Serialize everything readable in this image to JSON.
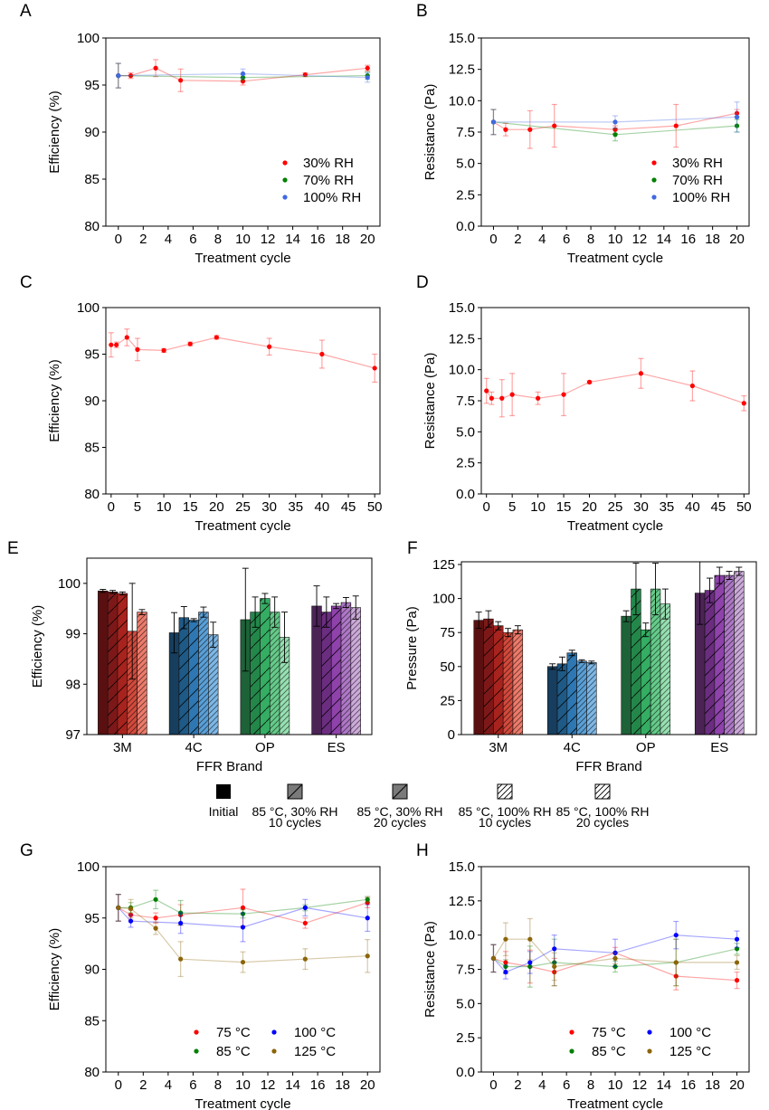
{
  "chart_data": [
    {
      "panel": "A",
      "type": "scatter",
      "xlabel": "Treatment cycle",
      "ylabel": "Efficiency (%)",
      "xlim": [
        -1,
        21
      ],
      "ylim": [
        80,
        100
      ],
      "xticks": [
        0,
        2,
        4,
        6,
        8,
        10,
        12,
        14,
        16,
        18,
        20
      ],
      "yticks": [
        80,
        85,
        90,
        95,
        100
      ],
      "legend": "lower-right",
      "legend_cols": 1,
      "series": [
        {
          "name": "30% RH",
          "color": "#ff0000",
          "x": [
            0,
            1,
            3,
            5,
            10,
            15,
            20
          ],
          "y": [
            96.0,
            96.0,
            96.8,
            95.5,
            95.4,
            96.1,
            96.8
          ],
          "err": [
            1.3,
            0.3,
            0.9,
            1.2,
            0.4,
            0.2,
            0.3
          ]
        },
        {
          "name": "70% RH",
          "color": "#008000",
          "x": [
            0,
            10,
            20
          ],
          "y": [
            96.0,
            95.8,
            96.0
          ],
          "err": [
            1.3,
            0.3,
            0.4
          ]
        },
        {
          "name": "100% RH",
          "color": "#4169e1",
          "x": [
            0,
            10,
            20
          ],
          "y": [
            96.0,
            96.2,
            95.8
          ],
          "err": [
            1.3,
            0.5,
            0.5
          ]
        }
      ]
    },
    {
      "panel": "B",
      "type": "scatter",
      "xlabel": "Treatment cycle",
      "ylabel": "Resistance (Pa)",
      "xlim": [
        -1,
        21
      ],
      "ylim": [
        0,
        15
      ],
      "xticks": [
        0,
        2,
        4,
        6,
        8,
        10,
        12,
        14,
        16,
        18,
        20
      ],
      "yticks": [
        0.0,
        2.5,
        5.0,
        7.5,
        10.0,
        12.5,
        15.0
      ],
      "ytick_decimals": 1,
      "legend": "lower-right",
      "legend_cols": 1,
      "series": [
        {
          "name": "30% RH",
          "color": "#ff0000",
          "x": [
            0,
            1,
            3,
            5,
            10,
            15,
            20
          ],
          "y": [
            8.3,
            7.7,
            7.7,
            8.0,
            7.7,
            8.0,
            9.0
          ],
          "err": [
            1.0,
            0.5,
            1.5,
            1.7,
            0.3,
            1.7,
            0.3
          ]
        },
        {
          "name": "70% RH",
          "color": "#008000",
          "x": [
            0,
            10,
            20
          ],
          "y": [
            8.3,
            7.3,
            8.0
          ],
          "err": [
            1.0,
            0.5,
            0.5
          ]
        },
        {
          "name": "100% RH",
          "color": "#4169e1",
          "x": [
            0,
            10,
            20
          ],
          "y": [
            8.3,
            8.3,
            8.7
          ],
          "err": [
            1.0,
            0.5,
            1.2
          ]
        }
      ]
    },
    {
      "panel": "C",
      "type": "scatter",
      "xlabel": "Treatment cycle",
      "ylabel": "Efficiency (%)",
      "xlim": [
        -1,
        51
      ],
      "ylim": [
        80,
        100
      ],
      "xticks": [
        0,
        5,
        10,
        15,
        20,
        25,
        30,
        35,
        40,
        45,
        50
      ],
      "yticks": [
        80,
        85,
        90,
        95,
        100
      ],
      "series": [
        {
          "name": "",
          "color": "#ff0000",
          "x": [
            0,
            1,
            3,
            5,
            10,
            15,
            20,
            30,
            40,
            50
          ],
          "y": [
            96.0,
            96.0,
            96.8,
            95.5,
            95.4,
            96.1,
            96.8,
            95.8,
            95.0,
            93.5
          ],
          "err": [
            1.3,
            0.3,
            0.9,
            1.2,
            0.2,
            0.2,
            0.2,
            0.9,
            1.5,
            1.5
          ]
        }
      ]
    },
    {
      "panel": "D",
      "type": "scatter",
      "xlabel": "Treatment cycle",
      "ylabel": "Resistance (Pa)",
      "xlim": [
        -1,
        51
      ],
      "ylim": [
        0,
        15
      ],
      "xticks": [
        0,
        5,
        10,
        15,
        20,
        25,
        30,
        35,
        40,
        45,
        50
      ],
      "yticks": [
        0.0,
        2.5,
        5.0,
        7.5,
        10.0,
        12.5,
        15.0
      ],
      "ytick_decimals": 1,
      "series": [
        {
          "name": "",
          "color": "#ff0000",
          "x": [
            0,
            1,
            3,
            5,
            10,
            15,
            20,
            30,
            40,
            50
          ],
          "y": [
            8.3,
            7.7,
            7.7,
            8.0,
            7.7,
            8.0,
            9.0,
            9.7,
            8.7,
            7.3
          ],
          "err": [
            1.0,
            0.5,
            1.5,
            1.7,
            0.5,
            1.7,
            0.1,
            1.2,
            1.2,
            0.6
          ]
        }
      ]
    },
    {
      "panel": "E",
      "type": "bar",
      "xlabel": "FFR Brand",
      "ylabel": "Efficiency (%)",
      "ylim": [
        97,
        100.5
      ],
      "yticks": [
        97,
        98,
        99,
        100
      ],
      "categories": [
        "3M",
        "4C",
        "OP",
        "ES"
      ],
      "colors": [
        [
          "#5a1010",
          "#7e1818",
          "#a8231d",
          "#d24a3c",
          "#ec7b6b"
        ],
        [
          "#173e5e",
          "#1f5a86",
          "#2e77b2",
          "#5a9fd6",
          "#7db7e6"
        ],
        [
          "#1e6238",
          "#24874a",
          "#35ad63",
          "#66cb8a",
          "#97e0b1"
        ],
        [
          "#4b2455",
          "#6b2d80",
          "#8e42aa",
          "#ae78c6",
          "#ccaad9"
        ]
      ],
      "values": [
        [
          99.85,
          99.83,
          99.8,
          99.05,
          99.43
        ],
        [
          99.02,
          99.32,
          99.27,
          99.43,
          98.98
        ],
        [
          99.28,
          99.43,
          99.7,
          99.43,
          98.93
        ],
        [
          99.55,
          99.43,
          99.55,
          99.62,
          99.52
        ]
      ],
      "err": [
        [
          0.03,
          0.03,
          0.03,
          0.95,
          0.05
        ],
        [
          0.4,
          0.22,
          0.03,
          0.1,
          0.25
        ],
        [
          1.02,
          0.3,
          0.1,
          0.3,
          0.5
        ],
        [
          0.4,
          0.3,
          0.05,
          0.1,
          0.23
        ]
      ]
    },
    {
      "panel": "F",
      "type": "bar",
      "xlabel": "FFR Brand",
      "ylabel": "Pressure (Pa)",
      "ylim": [
        0,
        127
      ],
      "yticks": [
        0,
        25,
        50,
        75,
        100,
        125
      ],
      "categories": [
        "3M",
        "4C",
        "OP",
        "ES"
      ],
      "colors": [
        [
          "#5a1010",
          "#7e1818",
          "#a8231d",
          "#d24a3c",
          "#ec7b6b"
        ],
        [
          "#173e5e",
          "#1f5a86",
          "#2e77b2",
          "#5a9fd6",
          "#7db7e6"
        ],
        [
          "#1e6238",
          "#24874a",
          "#35ad63",
          "#66cb8a",
          "#97e0b1"
        ],
        [
          "#4b2455",
          "#6b2d80",
          "#8e42aa",
          "#ae78c6",
          "#ccaad9"
        ]
      ],
      "values": [
        [
          84,
          85,
          80,
          75,
          77
        ],
        [
          50,
          52,
          60,
          54,
          53
        ],
        [
          87,
          107,
          77,
          107,
          96
        ],
        [
          104,
          106,
          117,
          117,
          120
        ]
      ],
      "err": [
        [
          6,
          6,
          3,
          3,
          3
        ],
        [
          2,
          5,
          2,
          1,
          1
        ],
        [
          4,
          19,
          5,
          19,
          11
        ],
        [
          23,
          9,
          6,
          3,
          3
        ]
      ]
    },
    {
      "panel": "G",
      "type": "scatter",
      "xlabel": "Treatment cycle",
      "ylabel": "Efficiency (%)",
      "xlim": [
        -1,
        21
      ],
      "ylim": [
        80,
        100
      ],
      "xticks": [
        0,
        2,
        4,
        6,
        8,
        10,
        12,
        14,
        16,
        18,
        20
      ],
      "yticks": [
        80,
        85,
        90,
        95,
        100
      ],
      "legend": "lower-right",
      "legend_cols": 2,
      "series": [
        {
          "name": "75 °C",
          "color": "#ff0000",
          "x": [
            0,
            1,
            3,
            5,
            10,
            15,
            20
          ],
          "y": [
            96.0,
            95.3,
            95.0,
            95.3,
            96.0,
            94.5,
            96.5
          ],
          "err": [
            1.3,
            0.5,
            0.5,
            1.0,
            1.8,
            0.5,
            0.5
          ]
        },
        {
          "name": "85 °C",
          "color": "#008000",
          "x": [
            0,
            1,
            3,
            5,
            10,
            15,
            20
          ],
          "y": [
            96.0,
            96.0,
            96.8,
            95.5,
            95.4,
            96.0,
            96.8
          ],
          "err": [
            1.3,
            0.5,
            0.9,
            1.2,
            0.4,
            0.3,
            0.3
          ]
        },
        {
          "name": "100 °C",
          "color": "#0000ff",
          "x": [
            0,
            1,
            5,
            10,
            15,
            20
          ],
          "y": [
            96.0,
            94.7,
            94.5,
            94.1,
            96.0,
            95.0
          ],
          "err": [
            1.3,
            0.6,
            1.0,
            1.4,
            0.8,
            1.3
          ]
        },
        {
          "name": "125 °C",
          "color": "#8b6508",
          "x": [
            0,
            1,
            3,
            5,
            10,
            15,
            20
          ],
          "y": [
            96.0,
            95.9,
            94.0,
            91.0,
            90.7,
            91.0,
            91.3
          ],
          "err": [
            1.3,
            0.9,
            0.6,
            1.7,
            1.0,
            1.0,
            1.6
          ]
        }
      ]
    },
    {
      "panel": "H",
      "type": "scatter",
      "xlabel": "Treatment cycle",
      "ylabel": "Resistance (Pa)",
      "xlim": [
        -1,
        21
      ],
      "ylim": [
        0,
        15
      ],
      "xticks": [
        0,
        2,
        4,
        6,
        8,
        10,
        12,
        14,
        16,
        18,
        20
      ],
      "yticks": [
        0.0,
        2.5,
        5.0,
        7.5,
        10.0,
        12.5,
        15.0
      ],
      "ytick_decimals": 1,
      "legend": "lower-right",
      "legend_cols": 2,
      "series": [
        {
          "name": "75 °C",
          "color": "#ff0000",
          "x": [
            0,
            1,
            3,
            5,
            10,
            15,
            20
          ],
          "y": [
            8.3,
            8.0,
            7.7,
            7.3,
            8.7,
            7.0,
            6.7
          ],
          "err": [
            1.0,
            0.8,
            1.2,
            1.0,
            0.4,
            1.0,
            0.6
          ]
        },
        {
          "name": "85 °C",
          "color": "#008000",
          "x": [
            0,
            1,
            3,
            5,
            10,
            15,
            20
          ],
          "y": [
            8.3,
            7.7,
            7.7,
            8.0,
            7.7,
            8.0,
            9.0
          ],
          "err": [
            1.0,
            0.5,
            1.5,
            1.7,
            0.4,
            1.7,
            0.4
          ]
        },
        {
          "name": "100 °C",
          "color": "#0000ff",
          "x": [
            0,
            1,
            3,
            5,
            10,
            15,
            20
          ],
          "y": [
            8.3,
            7.3,
            8.0,
            9.0,
            8.7,
            10.0,
            9.7
          ],
          "err": [
            1.0,
            0.5,
            0.8,
            1.0,
            1.0,
            1.0,
            0.6
          ]
        },
        {
          "name": "125 °C",
          "color": "#8b6508",
          "x": [
            0,
            1,
            3,
            5,
            10,
            15,
            20
          ],
          "y": [
            8.3,
            9.7,
            9.7,
            7.7,
            8.3,
            8.0,
            8.0
          ],
          "err": [
            1.0,
            1.2,
            1.5,
            1.0,
            0.4,
            1.7,
            0.5
          ]
        }
      ]
    }
  ],
  "bar_legend": [
    {
      "label": "Initial",
      "label2": "",
      "swatch": "solid"
    },
    {
      "label": "85 °C, 30% RH",
      "label2": "10 cycles",
      "swatch": "hatch-gray"
    },
    {
      "label": "85 °C, 30% RH",
      "label2": "20 cycles",
      "swatch": "hatch-gray"
    },
    {
      "label": "85 °C, 100% RH",
      "label2": "10 cycles",
      "swatch": "hatch-white"
    },
    {
      "label": "85 °C, 100% RH",
      "label2": "20 cycles",
      "swatch": "hatch-white"
    }
  ]
}
